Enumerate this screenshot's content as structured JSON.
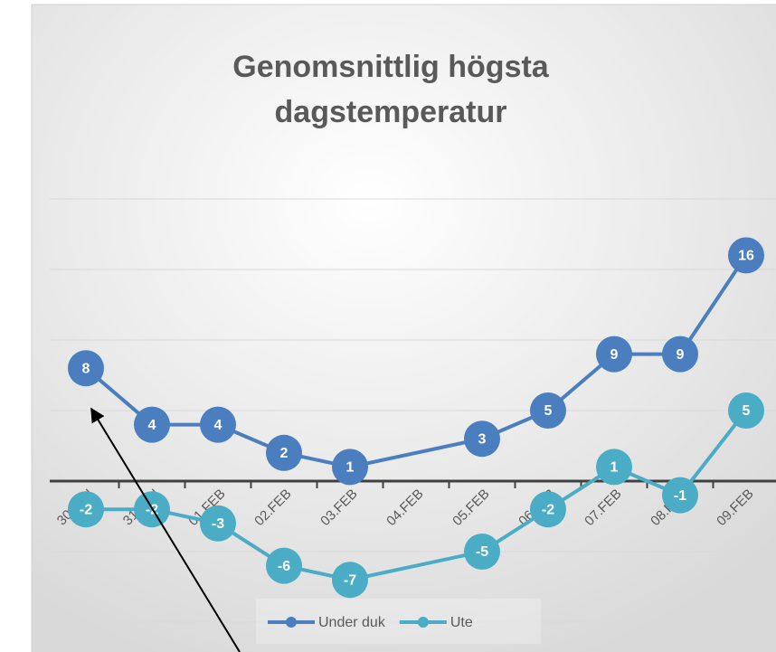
{
  "chart_data": {
    "type": "line",
    "title": [
      "Genomsnittlig högsta",
      "dagstemperatur"
    ],
    "categories": [
      "30.JAN",
      "31.JAN",
      "01.FEB",
      "02.FEB",
      "03.FEB",
      "04.FEB",
      "05.FEB",
      "06.FEB",
      "07.FEB",
      "08.FEB",
      "09.FEB"
    ],
    "series": [
      {
        "name": "Under duk",
        "color": "#4a7ebf",
        "values": [
          8,
          4,
          4,
          2,
          1,
          null,
          3,
          5,
          9,
          9,
          16
        ]
      },
      {
        "name": "Ute",
        "color": "#4bacc6",
        "values": [
          -2,
          -2,
          -3,
          -6,
          -7,
          null,
          -5,
          -2,
          1,
          -1,
          5
        ]
      }
    ],
    "ylim": [
      -10,
      20
    ],
    "yticks": [
      -10,
      -5,
      0,
      5,
      10,
      15,
      20
    ],
    "show_ytick_labels": false,
    "grid": true,
    "connect_nulls": true,
    "data_labels": true,
    "legend": "bottom"
  }
}
